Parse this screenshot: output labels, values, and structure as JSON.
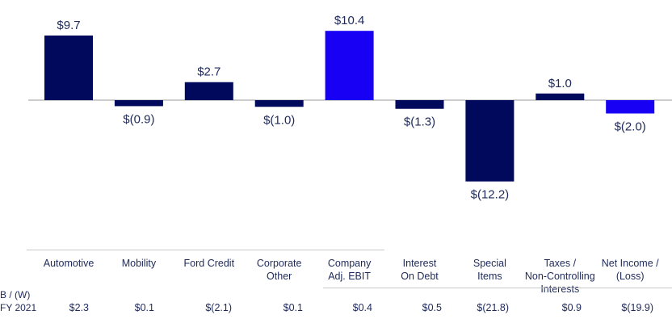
{
  "chart_data": {
    "type": "bar",
    "categories": [
      "Automotive",
      "Mobility",
      "Ford Credit",
      "Corporate\nOther",
      "Company\nAdj. EBIT",
      "Interest\nOn Debt",
      "Special\nItems",
      "Taxes /\nNon-Controlling\nInterests",
      "Net Income /\n(Loss)"
    ],
    "values": [
      9.7,
      -0.9,
      2.7,
      -1.0,
      10.4,
      -1.3,
      -12.2,
      1.0,
      -2.0
    ],
    "data_labels": [
      "$9.7",
      "$(0.9)",
      "$2.7",
      "$(1.0)",
      "$10.4",
      "$(1.3)",
      "$(12.2)",
      "$1.0",
      "$(2.0)"
    ],
    "highlight": [
      false,
      false,
      false,
      false,
      true,
      false,
      false,
      false,
      true
    ],
    "ylim": [
      -13,
      12
    ],
    "grid": false,
    "colors": {
      "bar": "#00095b",
      "highlight": "#1700f4",
      "axis": "#9a9a9a",
      "label": "#1f2a5a"
    }
  },
  "table": {
    "row_label_line1": "B / (W)",
    "row_label_line2": "FY 2021",
    "values": [
      "$2.3",
      "$0.1",
      "$(2.1)",
      "$0.1",
      "$0.4",
      "$0.5",
      "$(21.8)",
      "$0.9",
      "$(19.9)"
    ]
  }
}
